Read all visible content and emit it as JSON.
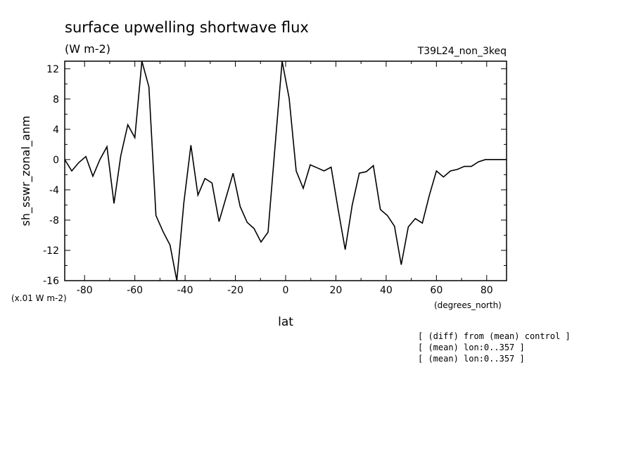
{
  "chart_data": {
    "type": "line",
    "title": "surface upwelling shortwave flux",
    "subtitle": "(W m-2)",
    "run_label": "T39L24_non_3keq",
    "xlabel": "lat",
    "x_unit": "(degrees_north)",
    "ylabel": "sh_sswr_zonal_anm",
    "y_unit": "(x.01 W m-2)",
    "xlim": [
      -87.9,
      87.9
    ],
    "ylim": [
      -16,
      13
    ],
    "x_ticks": [
      -80,
      -60,
      -40,
      -20,
      0,
      20,
      40,
      60,
      80
    ],
    "x_tick_labels": [
      "-80",
      "-60",
      "-40",
      "-20",
      "0",
      "20",
      "40",
      "60",
      "80"
    ],
    "y_ticks": [
      12,
      8,
      4,
      0,
      -4,
      -8,
      -12,
      -16
    ],
    "y_tick_labels": [
      "12",
      "8",
      "4",
      "0",
      "-4",
      "-8",
      "-12",
      "-16"
    ],
    "grid": false,
    "notes": [
      "[ (diff) from (mean) control ]",
      "[ (mean) lon:0..357 ]",
      "[ (mean) lon:0..357 ]"
    ],
    "series": [
      {
        "color": "#000000",
        "x": [
          -87.9,
          -85.1,
          -82.3,
          -79.5,
          -76.7,
          -73.9,
          -71.1,
          -68.3,
          -65.6,
          -62.8,
          -60.0,
          -57.2,
          -54.4,
          -51.6,
          -48.8,
          -46.0,
          -43.3,
          -40.5,
          -37.7,
          -34.9,
          -32.1,
          -29.3,
          -26.5,
          -23.7,
          -20.9,
          -18.1,
          -15.3,
          -12.6,
          -9.8,
          -7.0,
          -4.2,
          -1.4,
          1.4,
          4.2,
          7.0,
          9.8,
          12.6,
          15.3,
          18.1,
          20.9,
          23.7,
          26.5,
          29.3,
          32.1,
          34.9,
          37.7,
          40.5,
          43.3,
          46.0,
          48.8,
          51.6,
          54.4,
          57.2,
          60.0,
          62.8,
          65.6,
          68.3,
          71.1,
          73.9,
          76.7,
          79.5,
          82.3,
          85.1,
          87.9
        ],
        "y": [
          0.0,
          -1.5,
          -0.4,
          0.4,
          -2.2,
          0.0,
          1.7,
          -5.8,
          0.5,
          4.6,
          2.9,
          13.0,
          9.6,
          -7.4,
          -9.5,
          -11.3,
          -16.0,
          -5.7,
          1.9,
          -4.7,
          -2.5,
          -3.1,
          -8.2,
          -5.0,
          -1.8,
          -6.2,
          -8.3,
          -9.1,
          -10.9,
          -9.6,
          1.8,
          13.0,
          8.1,
          -1.5,
          -3.8,
          -0.7,
          -1.1,
          -1.5,
          -1.0,
          -6.6,
          -11.9,
          -6.0,
          -1.8,
          -1.6,
          -0.8,
          -6.6,
          -7.4,
          -8.8,
          -13.9,
          -8.9,
          -7.8,
          -8.4,
          -4.7,
          -1.5,
          -2.3,
          -1.5,
          -1.3,
          -0.9,
          -0.9,
          -0.3,
          0.0,
          0.0,
          0.0,
          0.0
        ]
      }
    ]
  }
}
